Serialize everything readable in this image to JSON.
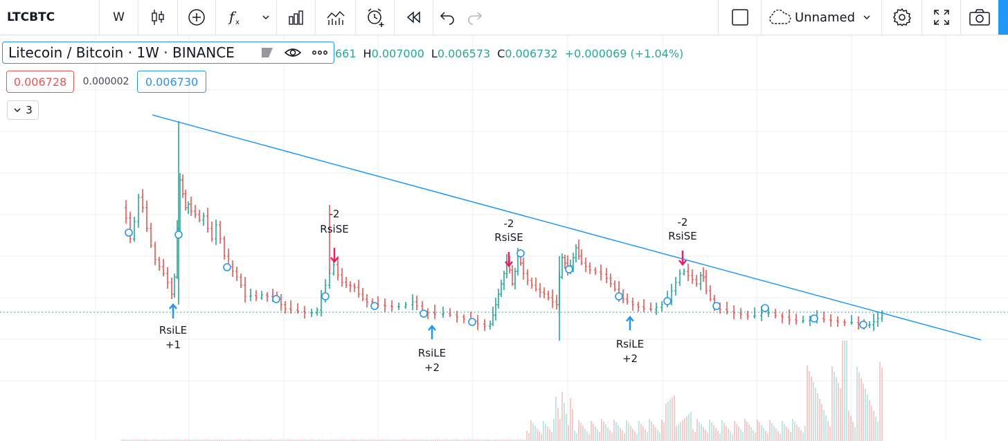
{
  "toolbar": {
    "symbol": "LTCBTC",
    "interval": "W",
    "layout_name": "Unnamed"
  },
  "legend": {
    "title": "Litecoin / Bitcoin · 1W · BINANCE",
    "ohlc_open_partial": "661",
    "h_label": "H",
    "h_value": "0.007000",
    "l_label": "L",
    "l_value": "0.006573",
    "c_label": "C",
    "c_value": "0.006732",
    "change": "+0.000069 (+1.04%)"
  },
  "prices": {
    "sell": "0.006728",
    "spread": "0.000002",
    "buy": "0.006730"
  },
  "indicators_toggle": "3",
  "signals": [
    {
      "label": "RsiLE",
      "qty": "+1",
      "direction": "long"
    },
    {
      "label": "RsiSE",
      "qty": "-2",
      "direction": "short"
    },
    {
      "label": "RsiLE",
      "qty": "+2",
      "direction": "long"
    },
    {
      "label": "RsiSE",
      "qty": "-2",
      "direction": "short"
    },
    {
      "label": "RsiLE",
      "qty": "+2",
      "direction": "long"
    },
    {
      "label": "RsiSE",
      "qty": "-2",
      "direction": "short"
    }
  ],
  "colors": {
    "up": "#26a69a",
    "down": "#ef5350",
    "trendline": "#2196f3",
    "long_arrow": "#2196f3",
    "short_arrow": "#e91e63"
  }
}
